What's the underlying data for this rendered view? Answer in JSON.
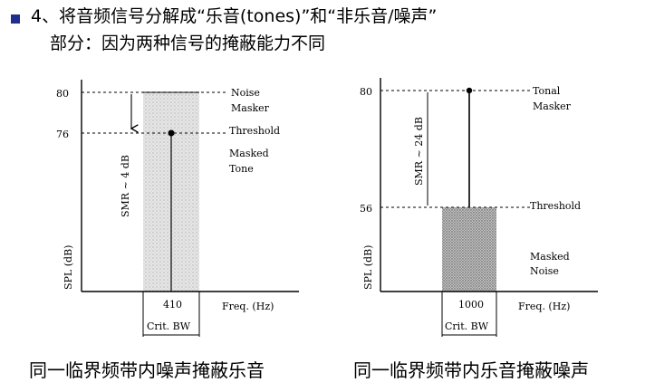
{
  "heading": {
    "line1": "4、将音频信号分解成“乐音(tones)”和“非乐音/噪声”",
    "line2": "部分：因为两种信号的掩蔽能力不同"
  },
  "left_figure": {
    "y_axis_label": "SPL (dB)",
    "x_axis_label": "Freq. (Hz)",
    "y_ticks": [
      "80",
      "76"
    ],
    "x_tick": "410",
    "bandwidth_label": "Crit. BW",
    "smr_label": "SMR ~ 4 dB",
    "annotations": {
      "masker": [
        "Noise",
        "Masker"
      ],
      "threshold": "Threshold",
      "masked": [
        "Masked",
        "Tone"
      ]
    },
    "caption": "同一临界频带内噪声掩蔽乐音"
  },
  "right_figure": {
    "y_axis_label": "SPL (dB)",
    "x_axis_label": "Freq. (Hz)",
    "y_ticks": [
      "80",
      "56"
    ],
    "x_tick": "1000",
    "bandwidth_label": "Crit. BW",
    "smr_label": "SMR ~ 24 dB",
    "annotations": {
      "masker": [
        "Tonal",
        "Masker"
      ],
      "threshold": "Threshold",
      "masked": [
        "Masked",
        "Noise"
      ]
    },
    "caption": "同一临界频带内乐音掩蔽噪声"
  }
}
